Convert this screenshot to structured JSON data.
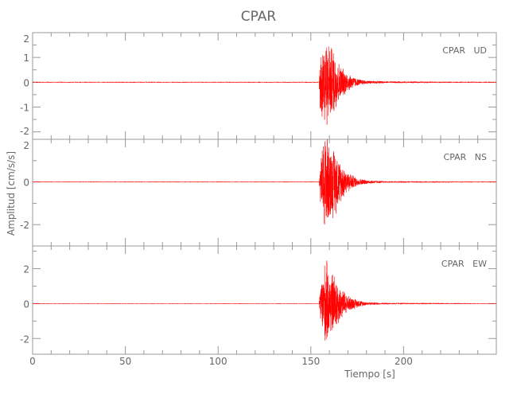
{
  "chart_data": [
    {
      "type": "line",
      "title": "CPAR",
      "xlabel": "Tiempo [s]",
      "ylabel": "Amplitud [cm/s/s]",
      "xlim": [
        0,
        250
      ],
      "xticks": [
        0,
        50,
        100,
        150,
        200
      ],
      "color": "#ff0000",
      "grid": false,
      "panels": [
        {
          "label": "CPAR   UD",
          "ylim": [
            -2.3,
            2.0
          ],
          "yticks": [
            2,
            1,
            0,
            -1,
            -2
          ],
          "envelope_time": [
            0,
            154.5,
            155,
            158,
            160,
            163,
            166,
            170,
            175,
            180,
            190,
            250
          ],
          "envelope_amp": [
            0.02,
            0.02,
            1.4,
            2.0,
            1.7,
            1.3,
            0.7,
            0.4,
            0.15,
            0.08,
            0.04,
            0.02
          ]
        },
        {
          "label": "CPAR   NS",
          "ylim": [
            -3.0,
            2.0
          ],
          "yticks": [
            2,
            0,
            -2
          ],
          "envelope_time": [
            0,
            154.5,
            155,
            158,
            160,
            163,
            166,
            170,
            175,
            180,
            190,
            250
          ],
          "envelope_amp": [
            0.02,
            0.02,
            1.0,
            2.8,
            1.9,
            1.7,
            1.0,
            0.5,
            0.2,
            0.1,
            0.04,
            0.02
          ]
        },
        {
          "label": "CPAR   EW",
          "ylim": [
            -2.9,
            3.3
          ],
          "yticks": [
            2,
            0,
            -2
          ],
          "envelope_time": [
            0,
            154.5,
            155,
            158,
            160,
            163,
            166,
            170,
            175,
            180,
            190,
            250
          ],
          "envelope_amp": [
            0.02,
            0.02,
            1.0,
            2.8,
            2.0,
            1.8,
            1.0,
            0.5,
            0.25,
            0.1,
            0.05,
            0.02
          ]
        }
      ]
    }
  ]
}
